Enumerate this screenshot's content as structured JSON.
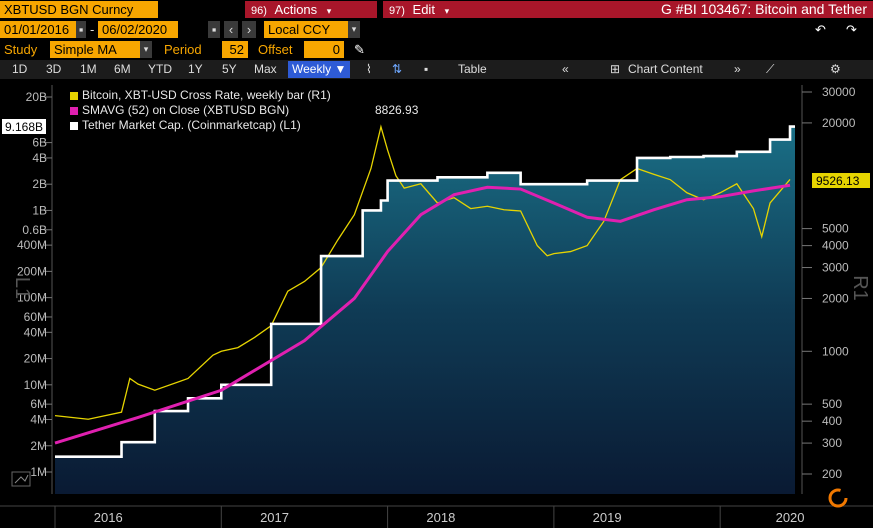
{
  "header": {
    "ticker": "XBTUSD BGN Curncy",
    "actions_num": "96)",
    "actions_label": "Actions",
    "edit_num": "97)",
    "edit_label": "Edit",
    "page_title": "G #BI 103467: Bitcoin and Tether"
  },
  "controls": {
    "start_date": "01/01/2016",
    "end_date": "06/02/2020",
    "currency": "Local CCY",
    "study_label": "Study",
    "study_value": "Simple MA",
    "period_label": "Period",
    "period_value": "52",
    "offset_label": "Offset",
    "offset_value": "0"
  },
  "toolbar": {
    "ranges": [
      "1D",
      "3D",
      "1M",
      "6M",
      "YTD",
      "1Y",
      "5Y",
      "Max"
    ],
    "frequency": "Weekly",
    "table_label": "Table",
    "chart_content_label": "Chart Content"
  },
  "legend": {
    "items": [
      {
        "label": "Bitcoin, XBT-USD Cross Rate, weekly bar (R1)",
        "color": "#e6d400"
      },
      {
        "label": "SMAVG (52)  on Close (XBTUSD BGN)",
        "color": "#e020b0",
        "value": "8826.93"
      },
      {
        "label": "Tether Market Cap. (Coinmarketcap) (L1)",
        "color": "#ffffff"
      }
    ]
  },
  "chart_data": {
    "type": "line",
    "y_scale": "log",
    "left_axis": {
      "label": "L1",
      "ticks": [
        {
          "v": 1000000,
          "t": "1M"
        },
        {
          "v": 2000000,
          "t": "2M"
        },
        {
          "v": 4000000,
          "t": "4M"
        },
        {
          "v": 6000000,
          "t": "6M"
        },
        {
          "v": 10000000,
          "t": "10M"
        },
        {
          "v": 20000000,
          "t": "20M"
        },
        {
          "v": 40000000,
          "t": "40M"
        },
        {
          "v": 60000000,
          "t": "60M"
        },
        {
          "v": 100000000,
          "t": "100M"
        },
        {
          "v": 200000000,
          "t": "200M"
        },
        {
          "v": 400000000,
          "t": "400M"
        },
        {
          "v": 600000000,
          "t": "0.6B"
        },
        {
          "v": 1000000000,
          "t": "1B"
        },
        {
          "v": 2000000000,
          "t": "2B"
        },
        {
          "v": 4000000000,
          "t": "4B"
        },
        {
          "v": 6000000000,
          "t": "6B"
        },
        {
          "v": 20000000000,
          "t": "20B"
        }
      ],
      "current_label": "9.168B",
      "current_value": 9168000000
    },
    "right_axis": {
      "label": "R1",
      "ticks": [
        {
          "v": 200,
          "t": "200"
        },
        {
          "v": 300,
          "t": "300"
        },
        {
          "v": 400,
          "t": "400"
        },
        {
          "v": 500,
          "t": "500"
        },
        {
          "v": 1000,
          "t": "1000"
        },
        {
          "v": 2000,
          "t": "2000"
        },
        {
          "v": 3000,
          "t": "3000"
        },
        {
          "v": 4000,
          "t": "4000"
        },
        {
          "v": 5000,
          "t": "5000"
        },
        {
          "v": 20000,
          "t": "20000"
        },
        {
          "v": 30000,
          "t": "30000"
        }
      ],
      "current_label": "9526.13",
      "current_value": 9526.13
    },
    "x_labels": [
      "2016",
      "2017",
      "2018",
      "2019",
      "2020"
    ],
    "series": [
      {
        "name": "Bitcoin, XBT-USD Cross Rate, weekly bar (R1)",
        "axis": "right",
        "x": [
          2016.0,
          2016.2,
          2016.4,
          2016.45,
          2016.5,
          2016.6,
          2016.8,
          2016.95,
          2017.0,
          2017.1,
          2017.2,
          2017.3,
          2017.4,
          2017.5,
          2017.6,
          2017.7,
          2017.8,
          2017.9,
          2017.96,
          2018.0,
          2018.05,
          2018.1,
          2018.2,
          2018.3,
          2018.4,
          2018.5,
          2018.6,
          2018.7,
          2018.8,
          2018.9,
          2018.96,
          2019.0,
          2019.1,
          2019.2,
          2019.3,
          2019.4,
          2019.5,
          2019.6,
          2019.7,
          2019.8,
          2019.9,
          2020.0,
          2020.1,
          2020.2,
          2020.25,
          2020.3,
          2020.42
        ],
        "values": [
          430,
          410,
          450,
          700,
          650,
          600,
          700,
          950,
          1000,
          1050,
          1200,
          1400,
          2200,
          2500,
          3000,
          4300,
          6000,
          11000,
          19000,
          14000,
          10000,
          8500,
          9000,
          7000,
          7500,
          6500,
          6700,
          6400,
          6300,
          4000,
          3500,
          3600,
          3700,
          4000,
          5500,
          9500,
          11000,
          10200,
          9500,
          8000,
          7300,
          8000,
          9000,
          6500,
          4500,
          7000,
          9526.13
        ]
      },
      {
        "name": "SMAVG (52)  on Close (XBTUSD BGN)",
        "axis": "right",
        "x": [
          2016.0,
          2016.5,
          2017.0,
          2017.5,
          2017.8,
          2018.0,
          2018.2,
          2018.4,
          2018.6,
          2018.8,
          2019.0,
          2019.2,
          2019.4,
          2019.6,
          2019.8,
          2020.0,
          2020.2,
          2020.42
        ],
        "values": [
          300,
          420,
          600,
          1150,
          2000,
          3700,
          6000,
          7800,
          8600,
          8400,
          7000,
          5800,
          5500,
          6400,
          7300,
          7600,
          8200,
          8826.93
        ]
      },
      {
        "name": "Tether Market Cap. (Coinmarketcap) (L1)",
        "axis": "left",
        "x": [
          2016.0,
          2016.4,
          2016.6,
          2016.8,
          2017.0,
          2017.3,
          2017.6,
          2017.85,
          2017.96,
          2018.0,
          2018.3,
          2018.6,
          2018.8,
          2018.96,
          2019.2,
          2019.5,
          2019.7,
          2019.9,
          2020.1,
          2020.3,
          2020.42
        ],
        "values": [
          1500000,
          2200000,
          5000000,
          7000000,
          10000000,
          50000000,
          300000000,
          1000000000,
          1300000000,
          2200000000,
          2400000000,
          2700000000,
          2000000000,
          2000000000,
          2200000000,
          4000000000,
          4100000000,
          4200000000,
          4700000000,
          6500000000,
          9168000000
        ]
      }
    ]
  }
}
